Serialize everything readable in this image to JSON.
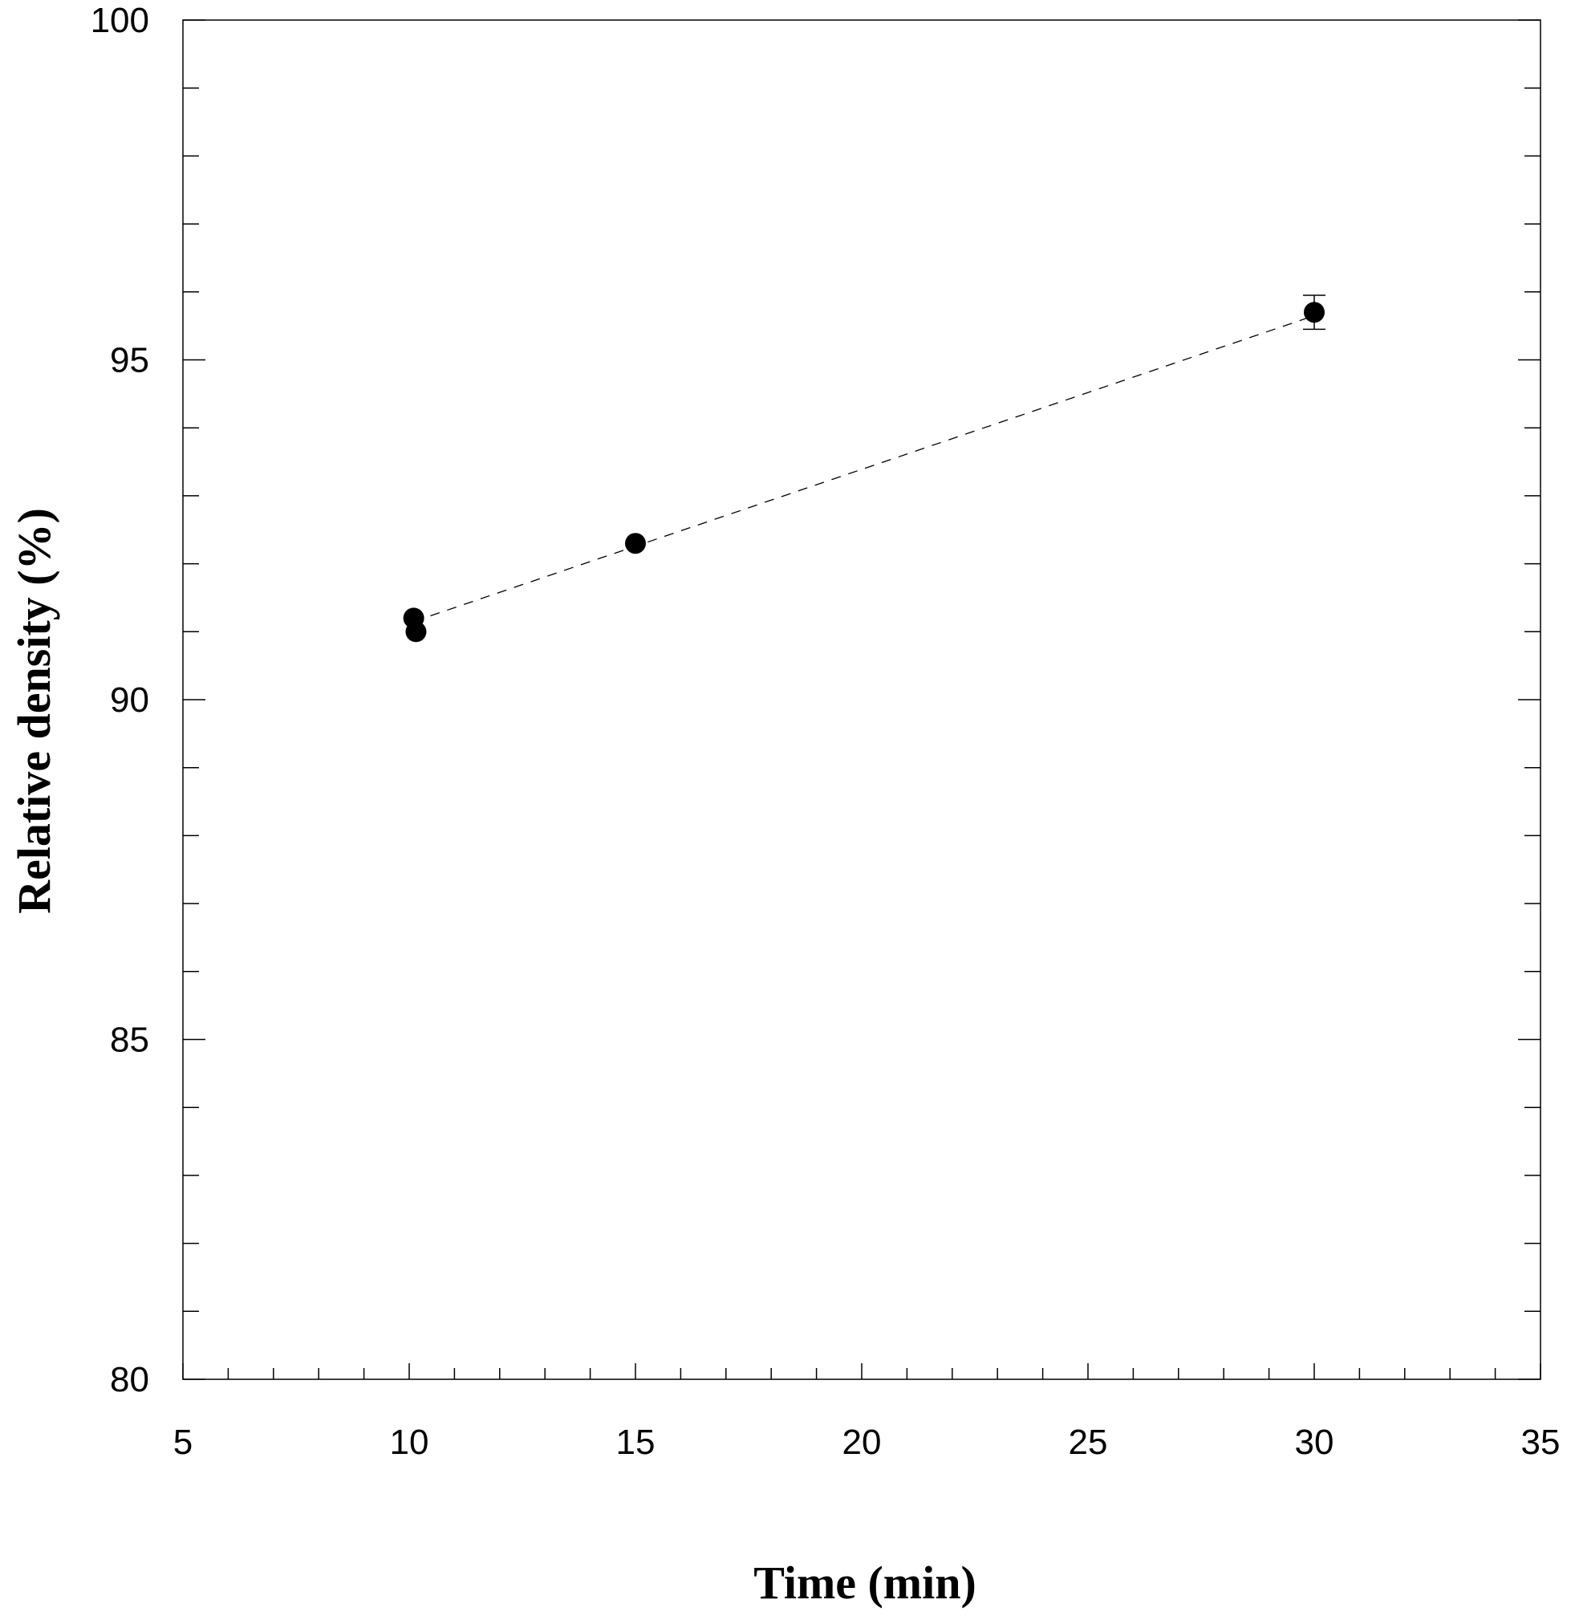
{
  "chart_data": {
    "type": "scatter",
    "title": "",
    "xlabel": "Time (min)",
    "ylabel": "Relative density (%)",
    "xlim": [
      5,
      35
    ],
    "ylim": [
      80,
      100
    ],
    "x_major_ticks": [
      5,
      10,
      15,
      20,
      25,
      30,
      35
    ],
    "y_major_ticks": [
      80,
      85,
      90,
      95,
      100
    ],
    "x_minor_step": 1,
    "y_minor_step": 1,
    "grid": false,
    "legend": "none",
    "series": [
      {
        "marker": "filled-circle",
        "color": "#000000",
        "points": [
          {
            "x": 10.1,
            "y": 91.2
          },
          {
            "x": 10.15,
            "y": 91.0
          },
          {
            "x": 15.0,
            "y": 92.3
          },
          {
            "x": 30.0,
            "y": 95.7,
            "error": 0.25
          }
        ]
      }
    ],
    "trend_line": {
      "style": "dashed",
      "color": "#000000",
      "points": [
        {
          "x": 10.1,
          "y": 91.15
        },
        {
          "x": 30.0,
          "y": 95.65
        }
      ]
    }
  }
}
